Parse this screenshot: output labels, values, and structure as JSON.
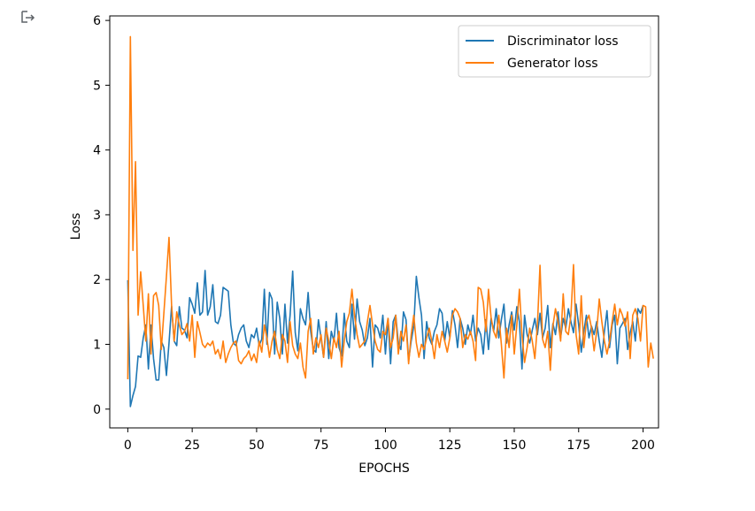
{
  "output_icon": "output-redirect-icon",
  "chart_data": {
    "type": "line",
    "title": "",
    "xlabel": "EPOCHS",
    "ylabel": "Loss",
    "xlim": [
      -7,
      206
    ],
    "ylim": [
      -0.29,
      6.07
    ],
    "xticks": [
      0,
      25,
      50,
      75,
      100,
      125,
      150,
      175,
      200
    ],
    "yticks": [
      0,
      1,
      2,
      3,
      4,
      5,
      6
    ],
    "grid": false,
    "legend_position": "top-right",
    "series": [
      {
        "name": "Discriminator loss",
        "color": "#1f77b4",
        "values": [
          1.99,
          0.04,
          0.21,
          0.35,
          0.82,
          0.8,
          1.1,
          1.3,
          0.62,
          1.3,
          0.78,
          0.45,
          0.45,
          1.05,
          0.95,
          0.52,
          1.02,
          1.59,
          1.05,
          0.98,
          1.58,
          1.25,
          1.22,
          1.1,
          1.72,
          1.62,
          1.48,
          1.95,
          1.45,
          1.5,
          2.14,
          1.45,
          1.58,
          1.92,
          1.35,
          1.32,
          1.45,
          1.88,
          1.85,
          1.82,
          1.3,
          1.02,
          0.98,
          1.15,
          1.25,
          1.3,
          1.05,
          0.95,
          1.15,
          1.1,
          1.25,
          0.98,
          1.08,
          1.85,
          1.0,
          1.8,
          1.7,
          0.85,
          1.65,
          1.4,
          0.85,
          1.62,
          1.02,
          1.45,
          2.13,
          1.18,
          0.9,
          1.55,
          1.4,
          1.3,
          1.8,
          1.2,
          0.92,
          0.88,
          1.38,
          1.1,
          0.8,
          1.35,
          0.78,
          1.2,
          1.05,
          1.48,
          0.95,
          0.82,
          1.48,
          1.05,
          0.95,
          1.62,
          1.08,
          1.7,
          1.35,
          1.22,
          0.98,
          1.1,
          1.4,
          0.65,
          1.3,
          1.25,
          1.1,
          1.45,
          0.85,
          1.4,
          0.7,
          1.35,
          1.45,
          1.02,
          0.92,
          1.5,
          1.38,
          0.75,
          1.05,
          1.28,
          2.05,
          1.72,
          1.45,
          0.78,
          1.35,
          1.1,
          1.0,
          1.2,
          1.3,
          1.55,
          1.48,
          1.05,
          1.35,
          1.1,
          1.52,
          1.3,
          0.95,
          1.4,
          1.25,
          1.0,
          1.3,
          1.15,
          1.45,
          1.05,
          1.25,
          1.15,
          0.85,
          1.38,
          0.92,
          1.4,
          1.2,
          1.55,
          1.1,
          1.38,
          1.62,
          1.02,
          1.3,
          1.5,
          1.22,
          1.58,
          1.35,
          0.62,
          1.45,
          1.15,
          1.02,
          1.22,
          1.4,
          1.15,
          1.48,
          1.1,
          1.25,
          1.6,
          0.95,
          1.32,
          1.15,
          1.5,
          1.1,
          1.4,
          1.25,
          1.55,
          1.35,
          1.18,
          1.62,
          1.3,
          0.88,
          1.2,
          1.45,
          1.1,
          1.28,
          1.15,
          1.35,
          1.05,
          0.8,
          1.2,
          1.52,
          0.95,
          1.3,
          1.45,
          0.7,
          1.25,
          1.32,
          1.4,
          0.92,
          1.18,
          1.35,
          1.05,
          1.55,
          1.48,
          1.6
        ]
      },
      {
        "name": "Generator loss",
        "color": "#ff7f0e",
        "values": [
          0.46,
          5.75,
          2.45,
          3.82,
          1.45,
          2.12,
          1.6,
          1.05,
          1.78,
          0.85,
          1.75,
          1.8,
          1.6,
          0.92,
          1.48,
          2.05,
          2.65,
          1.6,
          1.05,
          1.5,
          1.3,
          1.15,
          1.2,
          1.32,
          1.05,
          1.45,
          0.8,
          1.35,
          1.18,
          1.0,
          0.95,
          1.02,
          0.98,
          1.05,
          0.85,
          0.92,
          0.78,
          1.05,
          0.72,
          0.85,
          0.95,
          1.02,
          1.05,
          0.75,
          0.7,
          0.78,
          0.82,
          0.9,
          0.75,
          0.85,
          0.72,
          1.05,
          0.88,
          1.3,
          1.1,
          0.8,
          1.05,
          1.2,
          0.92,
          0.78,
          1.15,
          1.05,
          0.72,
          1.35,
          0.98,
          0.85,
          0.78,
          1.02,
          0.65,
          0.48,
          1.2,
          1.4,
          0.85,
          1.1,
          0.95,
          1.15,
          0.8,
          1.25,
          1.05,
          0.78,
          1.1,
          0.95,
          1.2,
          0.65,
          1.05,
          1.35,
          1.48,
          1.85,
          1.45,
          1.15,
          0.95,
          1.0,
          1.05,
          1.35,
          1.6,
          1.3,
          1.05,
          0.92,
          0.88,
          1.2,
          1.15,
          1.4,
          0.95,
          1.1,
          1.45,
          0.85,
          1.2,
          1.05,
          1.3,
          0.7,
          1.15,
          1.45,
          1.02,
          0.8,
          1.0,
          0.92,
          1.1,
          1.25,
          1.05,
          0.78,
          1.15,
          0.95,
          1.2,
          1.05,
          0.88,
          1.1,
          1.45,
          1.55,
          1.5,
          1.4,
          0.95,
          1.15,
          1.08,
          1.2,
          1.05,
          0.75,
          1.88,
          1.85,
          1.65,
          1.2,
          1.85,
          1.42,
          1.2,
          1.1,
          1.45,
          1.0,
          0.48,
          1.25,
          0.95,
          1.45,
          0.85,
          1.3,
          1.85,
          1.15,
          0.72,
          0.95,
          1.25,
          1.05,
          0.78,
          1.3,
          2.22,
          1.08,
          0.95,
          1.2,
          0.6,
          1.28,
          1.55,
          1.35,
          1.05,
          1.78,
          1.2,
          1.15,
          1.45,
          2.23,
          1.15,
          0.85,
          1.75,
          0.95,
          1.35,
          1.45,
          1.25,
          0.9,
          1.2,
          1.7,
          1.35,
          1.05,
          0.85,
          1.05,
          1.35,
          1.62,
          1.3,
          1.55,
          1.45,
          1.28,
          1.5,
          0.78,
          1.45,
          1.55,
          1.4,
          1.05,
          1.6,
          1.58,
          0.65,
          1.02,
          0.78
        ]
      }
    ]
  }
}
